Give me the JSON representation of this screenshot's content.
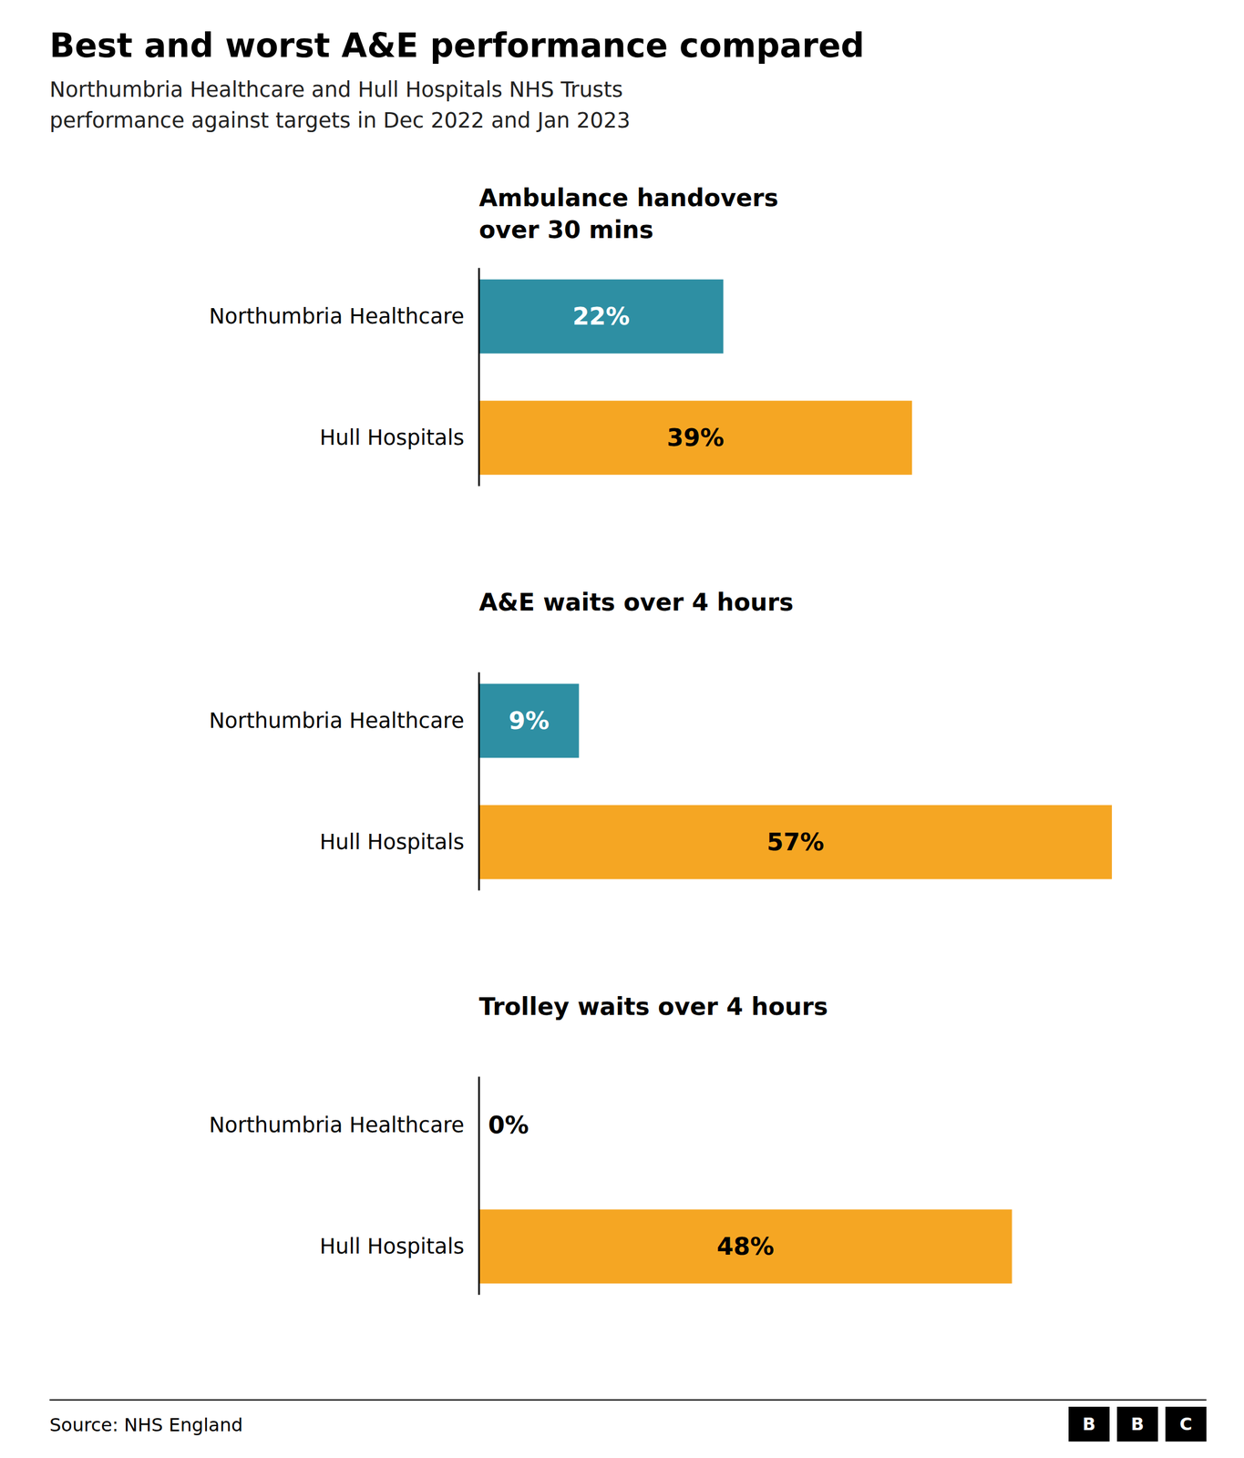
{
  "chart_data": {
    "type": "bar",
    "orientation": "horizontal",
    "title": "Best and worst A&E performance compared",
    "subtitle": "Northumbria Healthcare and Hull Hospitals NHS Trusts\nperformance against targets in Dec 2022 and Jan 2023",
    "source": "Source: NHS England",
    "logo": "BBC",
    "categories": [
      "Ambulance handovers\nover 30 mins",
      "A&E waits over 4 hours",
      "Trolley waits over 4 hours"
    ],
    "series": [
      {
        "name": "Northumbria Healthcare",
        "color": "#2e8fa3",
        "values": [
          22,
          9,
          0
        ],
        "value_labels": [
          "22%",
          "9%",
          "0%"
        ]
      },
      {
        "name": "Hull Hospitals",
        "color": "#f5a623",
        "values": [
          39,
          57,
          48
        ],
        "value_labels": [
          "39%",
          "57%",
          "48%"
        ]
      }
    ],
    "xlim": [
      0,
      65
    ],
    "data_labels": true,
    "tick_labels": false,
    "grid": false
  }
}
